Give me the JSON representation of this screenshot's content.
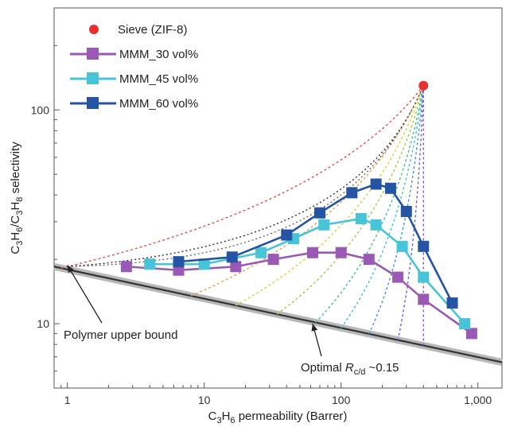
{
  "chart_data": {
    "type": "line",
    "title": "",
    "xlabel_parts": [
      "C",
      "3",
      "H",
      "6",
      " permeability (Barrer)"
    ],
    "ylabel_parts": [
      "C",
      "3",
      "H",
      "6",
      "/C",
      "3",
      "H",
      "8",
      " selectivity"
    ],
    "x_scale": "log",
    "y_scale": "log",
    "xlim": [
      0.8,
      1500
    ],
    "ylim": [
      5,
      300
    ],
    "x_ticks": [
      {
        "value": 1,
        "label": "1"
      },
      {
        "value": 10,
        "label": "10"
      },
      {
        "value": 100,
        "label": "100"
      },
      {
        "value": 1000,
        "label": "1,000"
      }
    ],
    "y_ticks": [
      {
        "value": 10,
        "label": "10"
      },
      {
        "value": 100,
        "label": "100"
      }
    ],
    "legend_position": "top-left",
    "series": [
      {
        "name": "Sieve (ZIF-8)",
        "kind": "point",
        "color": "#e8302e",
        "x": [
          400
        ],
        "y": [
          130
        ]
      },
      {
        "name": "MMM_30 vol%",
        "kind": "line",
        "color": "#9b59b6",
        "x": [
          2.7,
          6.5,
          17,
          32,
          62,
          100,
          160,
          260,
          400,
          900
        ],
        "y": [
          18.5,
          17.8,
          18.5,
          20,
          21.5,
          21.5,
          20,
          16.5,
          13,
          9
        ]
      },
      {
        "name": "MMM_45 vol%",
        "kind": "line",
        "color": "#48c4d8",
        "x": [
          4,
          10,
          26,
          45,
          75,
          140,
          180,
          280,
          400,
          800
        ],
        "y": [
          19,
          19,
          21.5,
          25,
          29,
          31,
          29,
          23,
          16.5,
          10
        ]
      },
      {
        "name": "MMM_60 vol%",
        "kind": "line",
        "color": "#2554a4",
        "x": [
          6.5,
          16,
          40,
          70,
          120,
          180,
          230,
          300,
          400,
          650
        ],
        "y": [
          19.5,
          20.5,
          26,
          33,
          41,
          45,
          43,
          33.5,
          23,
          12.5
        ]
      }
    ],
    "polymer_upper_bound": {
      "x": [
        0.8,
        1500
      ],
      "y": [
        18.5,
        6.6
      ]
    },
    "tie_lines": {
      "target": {
        "x": 400,
        "y": 130
      },
      "colors": [
        "#e05050",
        "#e8a040",
        "#d8d040",
        "#98d040",
        "#40c080",
        "#40c0d8",
        "#4090e0",
        "#6060e0",
        "#9050d0",
        "#c050c0",
        "#303030"
      ],
      "starts_x": [
        0.9,
        8,
        17,
        34,
        65,
        100,
        160,
        260,
        400
      ],
      "envelope_start": {
        "x": 1,
        "y": 18.5
      },
      "envelope_end": {
        "x": 400,
        "y": 130
      }
    },
    "annotations": [
      {
        "text": "Polymer upper bound",
        "arrow_to": {
          "x": 1,
          "y": 18.8
        }
      },
      {
        "text_parts": [
          "Optimal ",
          "R",
          "c/d",
          " ~0.15"
        ],
        "arrow_to": {
          "x": 62,
          "y": 10
        }
      }
    ]
  }
}
